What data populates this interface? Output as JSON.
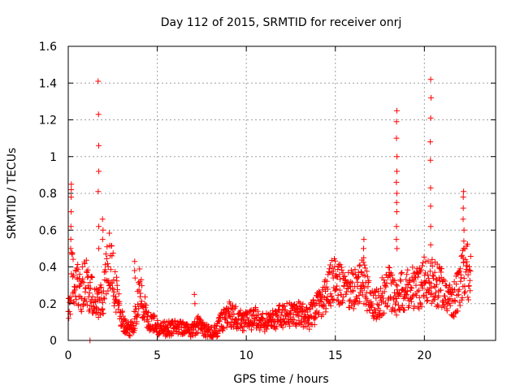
{
  "chart_data": {
    "type": "scatter",
    "title": "Day 112 of 2015, SRMTID for receiver onrj",
    "xlabel": "GPS time / hours",
    "ylabel": "SRMTID / TECUs",
    "xlim": [
      0,
      24
    ],
    "ylim": [
      0,
      1.6
    ],
    "xticks": [
      0,
      5,
      10,
      15,
      20
    ],
    "yticks": [
      0,
      0.2,
      0.4,
      0.6,
      0.8,
      1,
      1.2,
      1.4,
      1.6
    ],
    "xtick_labels": [
      "0",
      "5",
      "10",
      "15",
      "20"
    ],
    "ytick_labels": [
      "0",
      "0.2",
      "0.4",
      "0.6",
      "0.8",
      "1",
      "1.2",
      "1.4",
      "1.6"
    ],
    "grid": true,
    "marker": "plus",
    "color": "#ff0000",
    "series_profile": [
      {
        "x": 0.0,
        "y": 0.15
      },
      {
        "x": 0.1,
        "y": 0.2
      },
      {
        "x": 0.2,
        "y": 0.4
      },
      {
        "x": 0.35,
        "y": 0.3
      },
      {
        "x": 0.5,
        "y": 0.3
      },
      {
        "x": 0.7,
        "y": 0.25
      },
      {
        "x": 0.9,
        "y": 0.35
      },
      {
        "x": 1.1,
        "y": 0.28
      },
      {
        "x": 1.3,
        "y": 0.25
      },
      {
        "x": 1.5,
        "y": 0.2
      },
      {
        "x": 1.8,
        "y": 0.22
      },
      {
        "x": 2.0,
        "y": 0.25
      },
      {
        "x": 2.2,
        "y": 0.4
      },
      {
        "x": 2.4,
        "y": 0.45
      },
      {
        "x": 2.6,
        "y": 0.3
      },
      {
        "x": 2.8,
        "y": 0.2
      },
      {
        "x": 3.0,
        "y": 0.12
      },
      {
        "x": 3.3,
        "y": 0.07
      },
      {
        "x": 3.6,
        "y": 0.06
      },
      {
        "x": 3.8,
        "y": 0.15
      },
      {
        "x": 4.0,
        "y": 0.28
      },
      {
        "x": 4.2,
        "y": 0.2
      },
      {
        "x": 4.5,
        "y": 0.12
      },
      {
        "x": 5.0,
        "y": 0.07
      },
      {
        "x": 5.5,
        "y": 0.06
      },
      {
        "x": 6.0,
        "y": 0.07
      },
      {
        "x": 6.5,
        "y": 0.06
      },
      {
        "x": 7.0,
        "y": 0.05
      },
      {
        "x": 7.3,
        "y": 0.09
      },
      {
        "x": 7.6,
        "y": 0.06
      },
      {
        "x": 8.0,
        "y": 0.04
      },
      {
        "x": 8.3,
        "y": 0.05
      },
      {
        "x": 8.6,
        "y": 0.1
      },
      {
        "x": 9.0,
        "y": 0.15
      },
      {
        "x": 9.5,
        "y": 0.12
      },
      {
        "x": 10.0,
        "y": 0.1
      },
      {
        "x": 10.5,
        "y": 0.12
      },
      {
        "x": 11.0,
        "y": 0.1
      },
      {
        "x": 11.5,
        "y": 0.12
      },
      {
        "x": 12.0,
        "y": 0.13
      },
      {
        "x": 12.5,
        "y": 0.15
      },
      {
        "x": 13.0,
        "y": 0.14
      },
      {
        "x": 13.5,
        "y": 0.12
      },
      {
        "x": 14.0,
        "y": 0.18
      },
      {
        "x": 14.5,
        "y": 0.25
      },
      {
        "x": 15.0,
        "y": 0.35
      },
      {
        "x": 15.3,
        "y": 0.3
      },
      {
        "x": 15.6,
        "y": 0.25
      },
      {
        "x": 16.0,
        "y": 0.28
      },
      {
        "x": 16.4,
        "y": 0.32
      },
      {
        "x": 16.7,
        "y": 0.3
      },
      {
        "x": 17.0,
        "y": 0.18
      },
      {
        "x": 17.5,
        "y": 0.22
      },
      {
        "x": 18.0,
        "y": 0.3
      },
      {
        "x": 18.5,
        "y": 0.22
      },
      {
        "x": 18.8,
        "y": 0.28
      },
      {
        "x": 19.2,
        "y": 0.3
      },
      {
        "x": 19.6,
        "y": 0.28
      },
      {
        "x": 20.0,
        "y": 0.33
      },
      {
        "x": 20.4,
        "y": 0.32
      },
      {
        "x": 20.8,
        "y": 0.3
      },
      {
        "x": 21.2,
        "y": 0.25
      },
      {
        "x": 21.5,
        "y": 0.2
      },
      {
        "x": 21.8,
        "y": 0.25
      },
      {
        "x": 22.1,
        "y": 0.35
      },
      {
        "x": 22.4,
        "y": 0.38
      },
      {
        "x": 22.6,
        "y": 0.33
      }
    ],
    "spikes": [
      {
        "x": 0.15,
        "values": [
          0.85,
          0.82,
          0.78,
          0.7,
          0.62,
          0.55,
          0.5
        ]
      },
      {
        "x": 1.2,
        "values": [
          0.0
        ]
      },
      {
        "x": 1.7,
        "values": [
          1.41,
          1.23,
          1.06,
          0.92,
          0.81,
          0.62,
          0.5
        ]
      },
      {
        "x": 1.95,
        "values": [
          0.66,
          0.6,
          0.55
        ]
      },
      {
        "x": 3.75,
        "values": [
          0.43,
          0.38,
          0.34
        ]
      },
      {
        "x": 7.1,
        "values": [
          0.25,
          0.2
        ]
      },
      {
        "x": 16.6,
        "values": [
          0.55,
          0.5,
          0.45
        ]
      },
      {
        "x": 18.45,
        "values": [
          1.25,
          1.19,
          1.1,
          1.0,
          0.92,
          0.86,
          0.8,
          0.75,
          0.7,
          0.62,
          0.55,
          0.5
        ]
      },
      {
        "x": 20.35,
        "values": [
          1.42,
          1.32,
          1.21,
          1.08,
          0.98,
          0.83,
          0.73,
          0.62,
          0.52
        ]
      },
      {
        "x": 22.2,
        "values": [
          0.81,
          0.78,
          0.72,
          0.66,
          0.6,
          0.54,
          0.5
        ]
      }
    ]
  }
}
